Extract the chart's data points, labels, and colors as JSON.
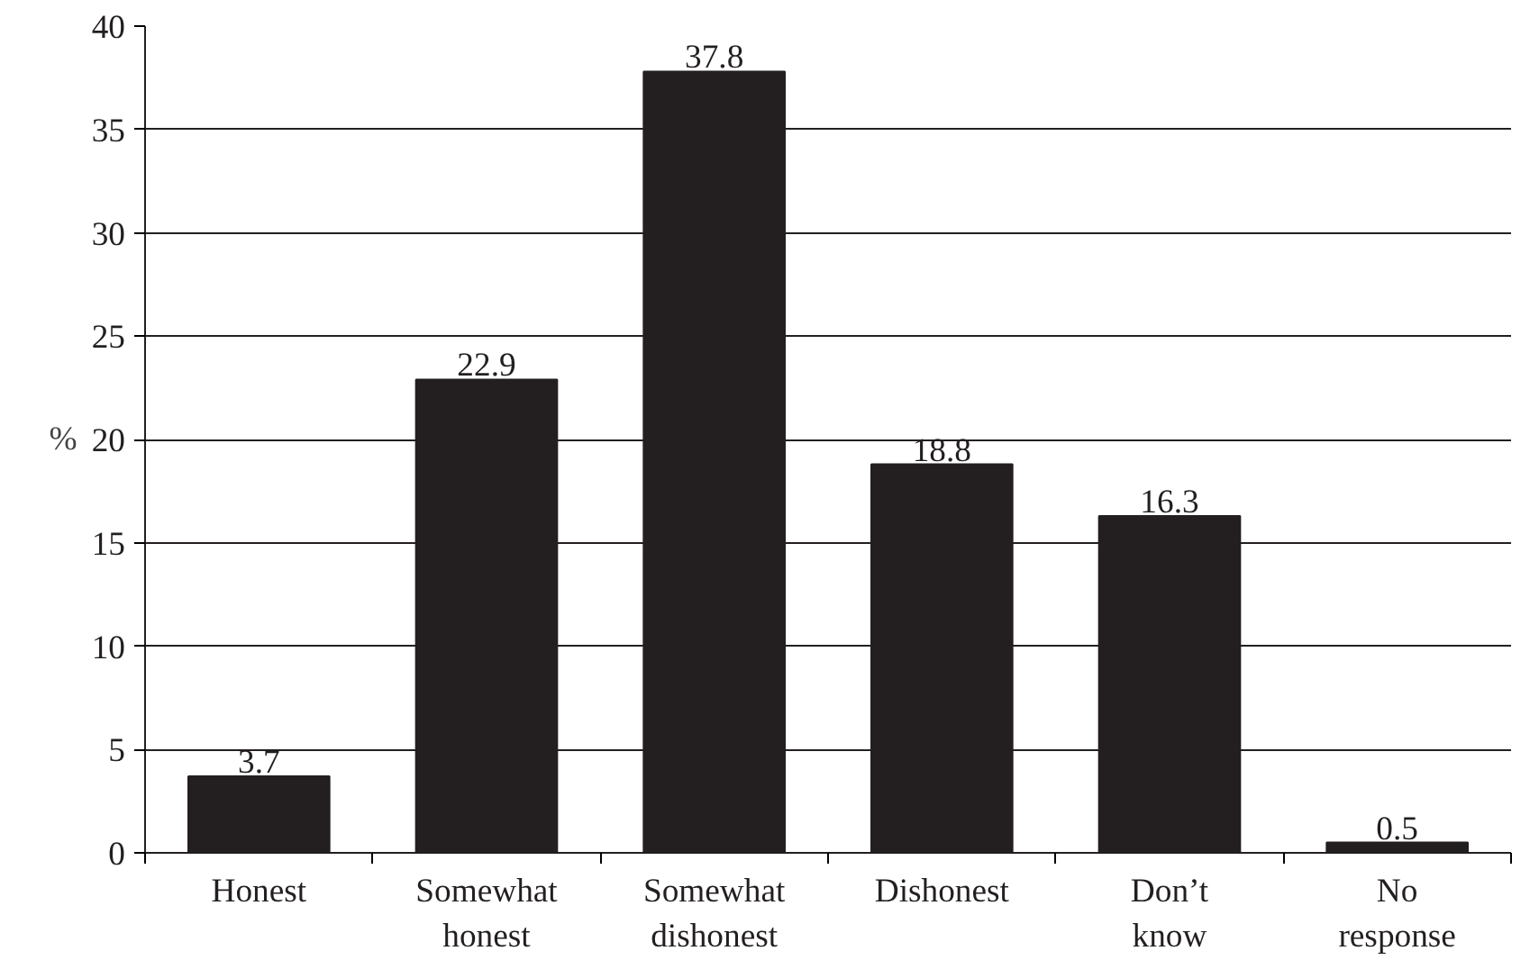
{
  "chart_data": {
    "type": "bar",
    "ylabel": "%",
    "categories": [
      "Honest",
      "Somewhat\nhonest",
      "Somewhat\ndishonest",
      "Dishonest",
      "Don’t\nknow",
      "No\nresponse"
    ],
    "values": [
      3.7,
      22.9,
      37.8,
      18.8,
      16.3,
      0.5
    ],
    "color": "#231f20",
    "ylim": [
      0,
      40
    ],
    "yticks": [
      0,
      5,
      10,
      15,
      20,
      25,
      30,
      35,
      40
    ],
    "grid": "y",
    "data_labels": true
  }
}
